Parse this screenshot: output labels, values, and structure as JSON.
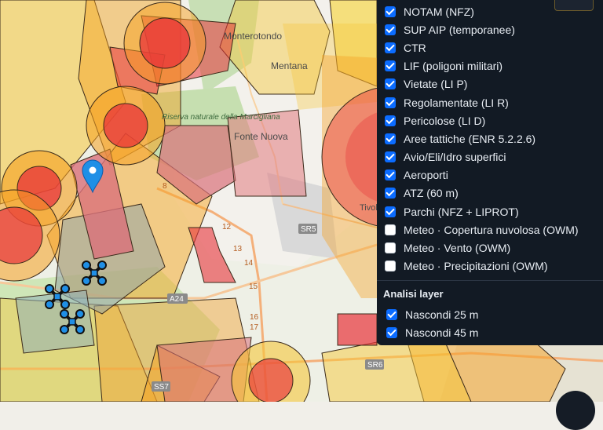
{
  "map": {
    "places": [
      "Monterotondo",
      "Mentana",
      "Fonte Nuova",
      "Tivoli",
      "Riserva naturale della Marcigliana"
    ],
    "road_shields": [
      "SR5",
      "SR6",
      "SS7",
      "A24"
    ],
    "road_km": [
      "8",
      "12",
      "13",
      "14",
      "15",
      "16",
      "17"
    ],
    "marker_icon": "map-pin-icon",
    "drone_icon": "drone-icon",
    "colors": {
      "red_zone": "#e8333a",
      "orange_zone": "#f5a020",
      "yellow_zone": "#f5d020",
      "pink_zone": "#d9707a",
      "gray_zone": "#9aa8a5",
      "marker": "#1f8fe6"
    }
  },
  "layers": [
    {
      "label": "NOTAM (NFZ)",
      "checked": true
    },
    {
      "label": "SUP AIP (temporanee)",
      "checked": true
    },
    {
      "label": "CTR",
      "checked": true
    },
    {
      "label": "LIF (poligoni militari)",
      "checked": true
    },
    {
      "label": "Vietate (LI P)",
      "checked": true
    },
    {
      "label": "Regolamentate (LI R)",
      "checked": true
    },
    {
      "label": "Pericolose (LI D)",
      "checked": true
    },
    {
      "label": "Aree tattiche (ENR 5.2.2.6)",
      "checked": true
    },
    {
      "label": "Avio/Eli/Idro superfici",
      "checked": true
    },
    {
      "label": "Aeroporti",
      "checked": true
    },
    {
      "label": "ATZ (60 m)",
      "checked": true
    },
    {
      "label": "Parchi (NFZ + LIPROT)",
      "checked": true
    },
    {
      "label": "Meteo · Copertura nuvolosa (OWM)",
      "checked": false
    },
    {
      "label": "Meteo · Vento (OWM)",
      "checked": false
    },
    {
      "label": "Meteo · Precipitazioni (OWM)",
      "checked": false
    }
  ],
  "analysis": {
    "title": "Analisi layer",
    "items": [
      {
        "label": "Nascondi 25 m",
        "checked": true
      },
      {
        "label": "Nascondi 45 m",
        "checked": true
      }
    ]
  }
}
